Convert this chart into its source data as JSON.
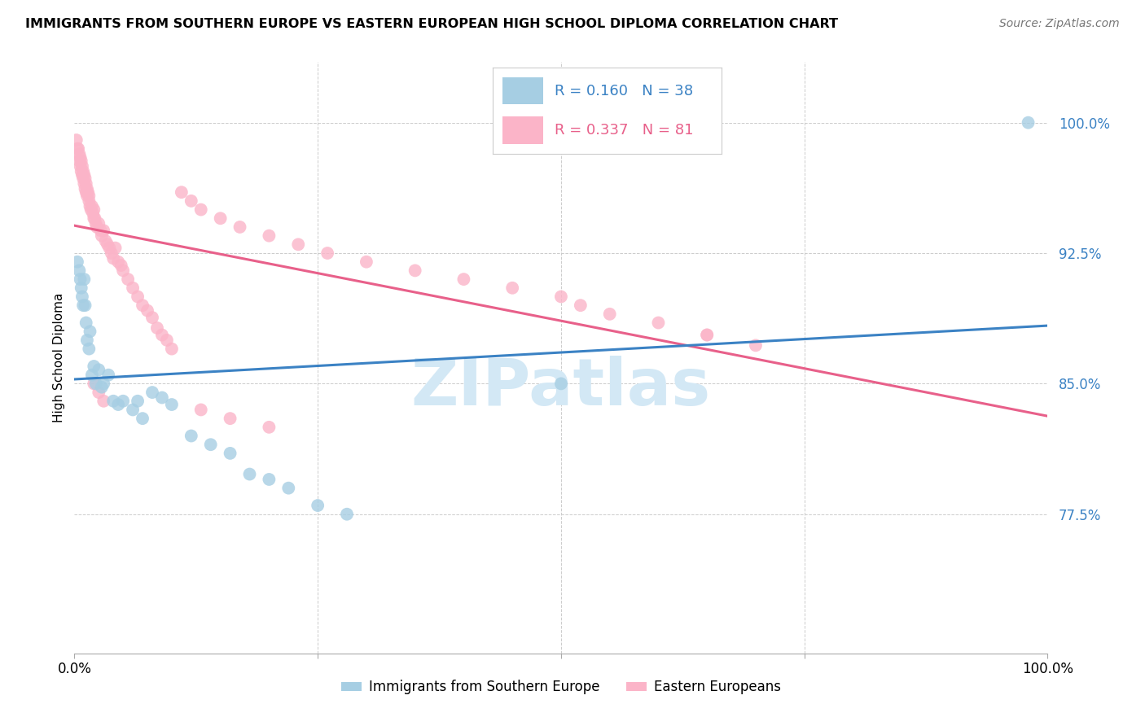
{
  "title": "IMMIGRANTS FROM SOUTHERN EUROPE VS EASTERN EUROPEAN HIGH SCHOOL DIPLOMA CORRELATION CHART",
  "source": "Source: ZipAtlas.com",
  "ylabel": "High School Diploma",
  "yticks_labels": [
    "77.5%",
    "85.0%",
    "92.5%",
    "100.0%"
  ],
  "yticks_vals": [
    0.775,
    0.85,
    0.925,
    1.0
  ],
  "xlim": [
    0.0,
    1.0
  ],
  "ylim": [
    0.695,
    1.035
  ],
  "legend_blue_r": "0.160",
  "legend_blue_n": "38",
  "legend_pink_r": "0.337",
  "legend_pink_n": "81",
  "blue_color": "#a6cee3",
  "pink_color": "#fbb4c8",
  "blue_line_color": "#3b82c4",
  "pink_line_color": "#e8608a",
  "watermark": "ZIPatlas",
  "watermark_color": "#d3e8f5",
  "blue_label": "Immigrants from Southern Europe",
  "pink_label": "Eastern Europeans",
  "blue_x": [
    0.003,
    0.005,
    0.006,
    0.007,
    0.008,
    0.009,
    0.01,
    0.011,
    0.012,
    0.013,
    0.015,
    0.016,
    0.018,
    0.02,
    0.022,
    0.025,
    0.028,
    0.03,
    0.035,
    0.04,
    0.045,
    0.05,
    0.06,
    0.065,
    0.07,
    0.08,
    0.09,
    0.1,
    0.12,
    0.14,
    0.16,
    0.18,
    0.2,
    0.22,
    0.25,
    0.28,
    0.5,
    0.98
  ],
  "blue_y": [
    0.92,
    0.915,
    0.91,
    0.905,
    0.9,
    0.895,
    0.91,
    0.895,
    0.885,
    0.875,
    0.87,
    0.88,
    0.855,
    0.86,
    0.85,
    0.858,
    0.848,
    0.85,
    0.855,
    0.84,
    0.838,
    0.84,
    0.835,
    0.84,
    0.83,
    0.845,
    0.842,
    0.838,
    0.82,
    0.815,
    0.81,
    0.798,
    0.795,
    0.79,
    0.78,
    0.775,
    0.85,
    1.0
  ],
  "pink_x": [
    0.002,
    0.003,
    0.004,
    0.005,
    0.005,
    0.006,
    0.006,
    0.007,
    0.007,
    0.008,
    0.008,
    0.009,
    0.009,
    0.01,
    0.01,
    0.011,
    0.011,
    0.012,
    0.012,
    0.013,
    0.013,
    0.014,
    0.015,
    0.015,
    0.016,
    0.017,
    0.018,
    0.019,
    0.02,
    0.02,
    0.021,
    0.022,
    0.023,
    0.025,
    0.027,
    0.028,
    0.03,
    0.032,
    0.034,
    0.036,
    0.038,
    0.04,
    0.042,
    0.045,
    0.048,
    0.05,
    0.055,
    0.06,
    0.065,
    0.07,
    0.075,
    0.08,
    0.085,
    0.09,
    0.095,
    0.1,
    0.11,
    0.12,
    0.13,
    0.15,
    0.17,
    0.2,
    0.23,
    0.26,
    0.3,
    0.35,
    0.4,
    0.45,
    0.5,
    0.52,
    0.55,
    0.6,
    0.65,
    0.7,
    0.02,
    0.025,
    0.03,
    0.13,
    0.16,
    0.2,
    0.65
  ],
  "pink_y": [
    0.99,
    0.985,
    0.985,
    0.982,
    0.978,
    0.98,
    0.975,
    0.978,
    0.972,
    0.975,
    0.97,
    0.972,
    0.968,
    0.97,
    0.965,
    0.968,
    0.962,
    0.965,
    0.96,
    0.962,
    0.958,
    0.96,
    0.958,
    0.955,
    0.952,
    0.95,
    0.952,
    0.948,
    0.95,
    0.945,
    0.945,
    0.942,
    0.94,
    0.942,
    0.938,
    0.935,
    0.938,
    0.932,
    0.93,
    0.928,
    0.925,
    0.922,
    0.928,
    0.92,
    0.918,
    0.915,
    0.91,
    0.905,
    0.9,
    0.895,
    0.892,
    0.888,
    0.882,
    0.878,
    0.875,
    0.87,
    0.96,
    0.955,
    0.95,
    0.945,
    0.94,
    0.935,
    0.93,
    0.925,
    0.92,
    0.915,
    0.91,
    0.905,
    0.9,
    0.895,
    0.89,
    0.885,
    0.878,
    0.872,
    0.85,
    0.845,
    0.84,
    0.835,
    0.83,
    0.825,
    0.878
  ]
}
